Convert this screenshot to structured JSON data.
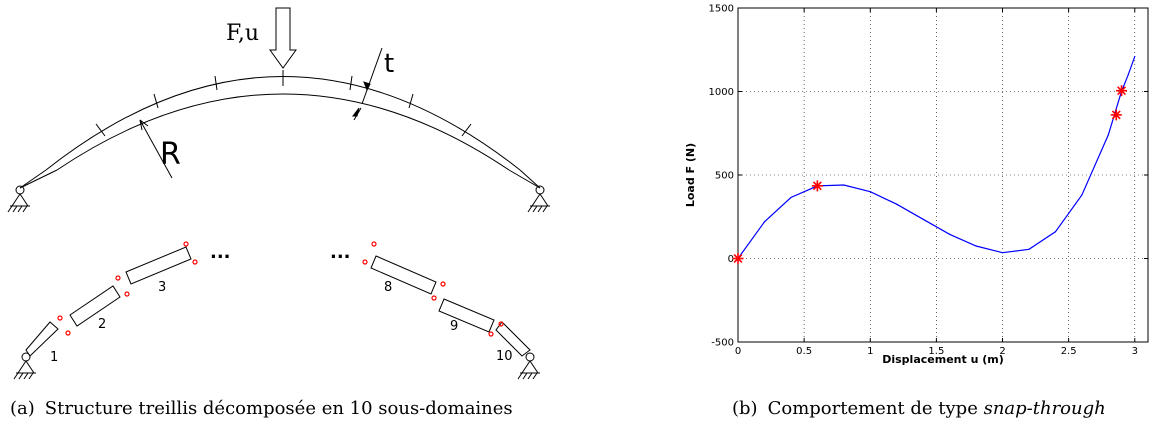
{
  "panel_a": {
    "labels": {
      "force": "F,u",
      "thickness": "t",
      "radius": "R"
    },
    "subdomain_numbers": [
      "1",
      "2",
      "3",
      "8",
      "9",
      "10"
    ],
    "ellipsis": "...",
    "caption": {
      "tag": "(a)",
      "text": "Structure treillis décomposée en 10 sous-domaines"
    }
  },
  "panel_b": {
    "caption": {
      "tag": "(b)",
      "text": "Comportement de type ",
      "emphasis": "snap-through"
    }
  },
  "colors": {
    "curve": "#0000ff",
    "markers": "#ff0000",
    "interface_dots": "#ff0000",
    "ink": "#000000"
  },
  "chart_data": {
    "type": "line",
    "title": "",
    "xlabel": "Displacement u (m)",
    "ylabel": "Load F (N)",
    "xlim": [
      0,
      3.1
    ],
    "ylim": [
      -500,
      1500
    ],
    "xticks": [
      "0",
      "0.5",
      "1",
      "1.5",
      "2",
      "2.5",
      "3"
    ],
    "yticks": [
      "-500",
      "0",
      "500",
      "1000",
      "1500"
    ],
    "xtick_values": [
      0,
      0.5,
      1,
      1.5,
      2,
      2.5,
      3
    ],
    "ytick_values": [
      -500,
      0,
      500,
      1000,
      1500
    ],
    "grid": true,
    "series": [
      {
        "x": [
          0,
          0.2,
          0.4,
          0.6,
          0.8,
          1.0,
          1.2,
          1.4,
          1.6,
          1.8,
          2.0,
          2.2,
          2.4,
          2.6,
          2.8,
          2.9,
          2.95,
          3.0
        ],
        "y": [
          0,
          220,
          365,
          435,
          440,
          400,
          325,
          235,
          145,
          75,
          35,
          55,
          160,
          380,
          740,
          1000,
          1100,
          1210
        ]
      }
    ],
    "markers": {
      "x": [
        0,
        0.6,
        2.86,
        2.9
      ],
      "y": [
        0,
        435,
        860,
        1005
      ]
    }
  }
}
